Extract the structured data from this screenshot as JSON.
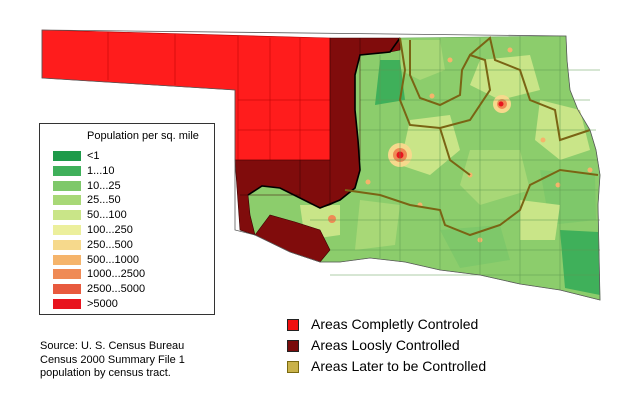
{
  "legend": {
    "title": "Population per sq. mile",
    "items": [
      {
        "label": "<1",
        "color": "#1e9a4a"
      },
      {
        "label": "1...10",
        "color": "#3fb05a"
      },
      {
        "label": "10...25",
        "color": "#7ec86a"
      },
      {
        "label": "25...50",
        "color": "#a8d877"
      },
      {
        "label": "50...100",
        "color": "#c9e588"
      },
      {
        "label": "100...250",
        "color": "#ecef9c"
      },
      {
        "label": "250...500",
        "color": "#f6d98c"
      },
      {
        "label": "500...1000",
        "color": "#f5b46b"
      },
      {
        "label": "1000...2500",
        "color": "#ef8a55"
      },
      {
        "label": "2500...5000",
        "color": "#e85a3e"
      },
      {
        "label": ">5000",
        "color": "#e8141e"
      }
    ]
  },
  "source": {
    "lines": [
      "Source: U. S. Census Bureau",
      "Census 2000 Summary File 1",
      "population by census tract."
    ]
  },
  "key": {
    "items": [
      {
        "label": "Areas Completly Controled",
        "color": "#f01010"
      },
      {
        "label": "Areas Loosly Controlled",
        "color": "#7a0c0c"
      },
      {
        "label": "Areas Later to be Controlled",
        "color": "#7a6a10"
      }
    ]
  },
  "colors": {
    "controlled": "#ff1c1c",
    "loosely_controlled": "#800c0c",
    "later_border": "#7a6414",
    "density_base": "#8ccd6c"
  }
}
